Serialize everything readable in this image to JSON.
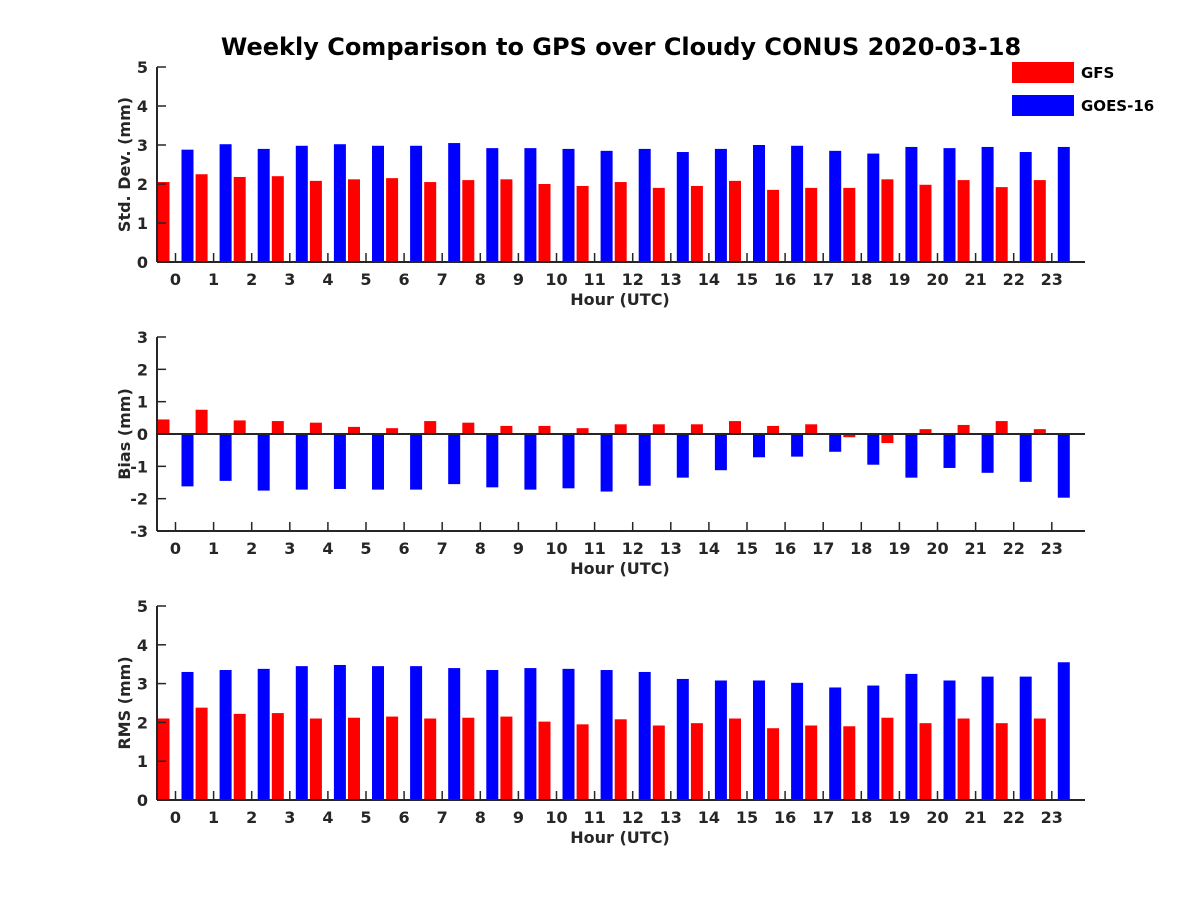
{
  "figure": {
    "title": "Weekly Comparison to GPS over Cloudy CONUS 2020-03-18"
  },
  "legend": {
    "placement": "top-right",
    "entries": [
      {
        "name": "GFS",
        "color": "#ff0000"
      },
      {
        "name": "GOES-16",
        "color": "#0000ff"
      }
    ]
  },
  "chart_data": [
    {
      "type": "bar",
      "xlabel": "Hour (UTC)",
      "ylabel": "Std. Dev. (mm)",
      "ylim": [
        0,
        5
      ],
      "yticks": [
        "0",
        "1",
        "2",
        "3",
        "4",
        "5"
      ],
      "categories": [
        "0",
        "1",
        "2",
        "3",
        "4",
        "5",
        "6",
        "7",
        "8",
        "9",
        "10",
        "11",
        "12",
        "13",
        "14",
        "15",
        "16",
        "17",
        "18",
        "19",
        "20",
        "21",
        "22",
        "23"
      ],
      "series": [
        {
          "name": "GFS",
          "color": "#ff0000",
          "values": [
            2.05,
            2.25,
            2.18,
            2.2,
            2.08,
            2.12,
            2.15,
            2.05,
            2.1,
            2.12,
            2.0,
            1.95,
            2.05,
            1.9,
            1.95,
            2.08,
            1.85,
            1.9,
            1.9,
            2.12,
            1.98,
            2.1,
            1.92,
            2.1
          ]
        },
        {
          "name": "GOES-16",
          "color": "#0000ff",
          "values": [
            2.88,
            3.02,
            2.9,
            2.98,
            3.02,
            2.98,
            2.98,
            3.05,
            2.92,
            2.92,
            2.9,
            2.85,
            2.9,
            2.82,
            2.9,
            3.0,
            2.98,
            2.85,
            2.78,
            2.95,
            2.92,
            2.95,
            2.82,
            2.95
          ]
        }
      ]
    },
    {
      "type": "bar",
      "xlabel": "Hour (UTC)",
      "ylabel": "Bias (mm)",
      "ylim": [
        -3,
        3
      ],
      "yticks": [
        "-3",
        "-2",
        "-1",
        "0",
        "1",
        "2",
        "3"
      ],
      "categories": [
        "0",
        "1",
        "2",
        "3",
        "4",
        "5",
        "6",
        "7",
        "8",
        "9",
        "10",
        "11",
        "12",
        "13",
        "14",
        "15",
        "16",
        "17",
        "18",
        "19",
        "20",
        "21",
        "22",
        "23"
      ],
      "series": [
        {
          "name": "GFS",
          "color": "#ff0000",
          "values": [
            0.45,
            0.75,
            0.42,
            0.4,
            0.35,
            0.22,
            0.18,
            0.4,
            0.35,
            0.25,
            0.25,
            0.18,
            0.3,
            0.3,
            0.3,
            0.4,
            0.25,
            0.3,
            -0.1,
            -0.28,
            0.15,
            0.28,
            0.4,
            0.15
          ]
        },
        {
          "name": "GOES-16",
          "color": "#0000ff",
          "values": [
            -1.62,
            -1.45,
            -1.75,
            -1.72,
            -1.7,
            -1.72,
            -1.72,
            -1.55,
            -1.65,
            -1.72,
            -1.68,
            -1.78,
            -1.6,
            -1.35,
            -1.12,
            -0.72,
            -0.7,
            -0.55,
            -0.95,
            -1.35,
            -1.05,
            -1.2,
            -1.48,
            -1.97
          ]
        }
      ]
    },
    {
      "type": "bar",
      "xlabel": "Hour (UTC)",
      "ylabel": "RMS (mm)",
      "ylim": [
        0,
        5
      ],
      "yticks": [
        "0",
        "1",
        "2",
        "3",
        "4",
        "5"
      ],
      "categories": [
        "0",
        "1",
        "2",
        "3",
        "4",
        "5",
        "6",
        "7",
        "8",
        "9",
        "10",
        "11",
        "12",
        "13",
        "14",
        "15",
        "16",
        "17",
        "18",
        "19",
        "20",
        "21",
        "22",
        "23"
      ],
      "series": [
        {
          "name": "GFS",
          "color": "#ff0000",
          "values": [
            2.1,
            2.38,
            2.22,
            2.24,
            2.1,
            2.12,
            2.15,
            2.1,
            2.12,
            2.15,
            2.02,
            1.95,
            2.08,
            1.92,
            1.98,
            2.1,
            1.85,
            1.92,
            1.9,
            2.12,
            1.98,
            2.1,
            1.98,
            2.1
          ]
        },
        {
          "name": "GOES-16",
          "color": "#0000ff",
          "values": [
            3.3,
            3.35,
            3.38,
            3.45,
            3.48,
            3.45,
            3.45,
            3.4,
            3.35,
            3.4,
            3.38,
            3.35,
            3.3,
            3.12,
            3.08,
            3.08,
            3.02,
            2.9,
            2.95,
            3.25,
            3.08,
            3.18,
            3.18,
            3.55
          ]
        }
      ]
    }
  ]
}
